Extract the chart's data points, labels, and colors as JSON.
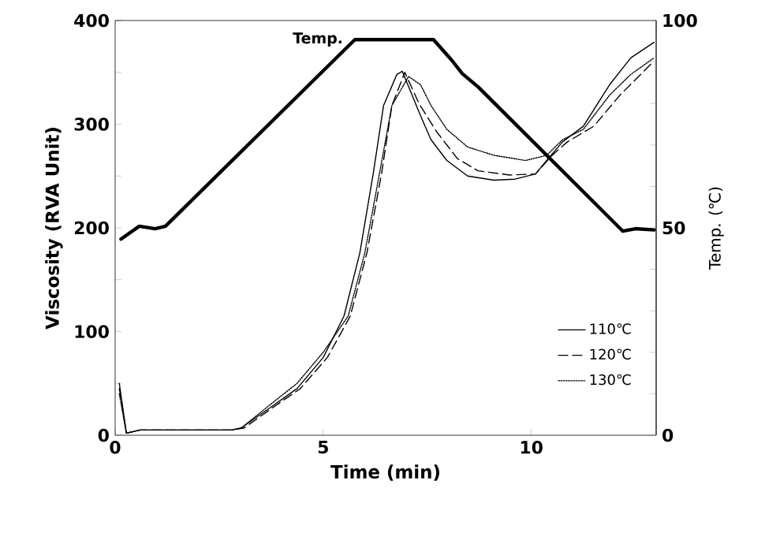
{
  "chart_data": {
    "type": "line",
    "xlabel": "Time (min)",
    "ylabel": "Viscosity (RVA Unit)",
    "y2label": "Temp. (℃)",
    "xlim": [
      0,
      13
    ],
    "xticks": [
      0,
      5,
      10
    ],
    "ylim": [
      0,
      400
    ],
    "yticks": [
      0,
      {
        "value": 50,
        "label": null
      },
      100,
      {
        "value": 150,
        "label": null
      },
      200,
      {
        "value": 250,
        "label": null
      },
      300,
      {
        "value": 350,
        "label": null
      },
      400
    ],
    "y2lim": [
      0,
      100
    ],
    "y2ticks": [
      0,
      {
        "value": 10,
        "label": null
      },
      {
        "value": 20,
        "label": null
      },
      {
        "value": 30,
        "label": null
      },
      {
        "value": 40,
        "label": null
      },
      50,
      {
        "value": 60,
        "label": null
      },
      {
        "value": 70,
        "label": null
      },
      {
        "value": 80,
        "label": null
      },
      {
        "value": 90,
        "label": null
      },
      100
    ],
    "legend": "bottom right",
    "grid": false,
    "marker": "none",
    "series": [
      {
        "name": "110℃",
        "color": "#000000",
        "line_style": "solid",
        "x": [
          0.1,
          0.27,
          0.6,
          1.5,
          2.8,
          3.03,
          3.74,
          4.37,
          5.0,
          5.5,
          5.88,
          6.2,
          6.45,
          6.77,
          6.9,
          7.34,
          7.59,
          7.97,
          8.47,
          9.1,
          9.61,
          10.1,
          10.37,
          10.75,
          11.25,
          11.88,
          12.39,
          12.95
        ],
        "values": [
          50,
          2,
          5,
          5,
          5,
          7,
          27,
          45,
          75,
          115,
          176,
          252,
          318,
          348,
          351,
          308,
          285,
          265,
          250,
          246,
          247,
          252,
          265,
          283,
          298,
          338,
          364,
          379
        ]
      },
      {
        "name": "120℃",
        "color": "#000000",
        "line_style": "dashed",
        "x": [
          0.1,
          0.27,
          0.6,
          1.5,
          2.8,
          3.1,
          3.8,
          4.45,
          5.1,
          5.65,
          6.05,
          6.4,
          6.65,
          6.96,
          7.3,
          7.72,
          8.22,
          8.72,
          9.48,
          10.1,
          10.5,
          10.87,
          11.5,
          12.13,
          12.95
        ],
        "values": [
          45,
          2,
          5,
          5,
          5,
          7,
          27,
          45,
          75,
          115,
          176,
          252,
          318,
          350,
          320,
          293,
          267,
          255,
          251,
          252,
          270,
          283,
          298,
          328,
          361
        ]
      },
      {
        "name": "130℃",
        "color": "#000000",
        "line_style": "dotted",
        "x": [
          0.1,
          0.27,
          0.6,
          1.5,
          2.8,
          3.03,
          3.74,
          4.37,
          5.0,
          5.6,
          6.0,
          6.35,
          6.65,
          7.05,
          7.34,
          7.59,
          7.97,
          8.47,
          9.1,
          9.86,
          10.37,
          10.75,
          11.25,
          11.88,
          12.39,
          12.95
        ],
        "values": [
          40,
          2,
          5,
          5,
          5,
          7,
          30,
          50,
          80,
          115,
          176,
          252,
          318,
          346,
          338,
          318,
          295,
          278,
          270,
          265,
          270,
          285,
          295,
          328,
          348,
          364
        ]
      },
      {
        "name": "Temp.",
        "color": "#000000",
        "line_style": "solid",
        "axis": "y2",
        "x": [
          0.14,
          0.58,
          0.96,
          1.21,
          5.76,
          7.65,
          8.09,
          8.34,
          8.72,
          12.2,
          12.5,
          12.95
        ],
        "values": [
          47.3,
          50.4,
          49.8,
          50.4,
          95.4,
          95.4,
          90.4,
          87.2,
          84,
          49.2,
          49.8,
          49.5
        ]
      }
    ]
  }
}
